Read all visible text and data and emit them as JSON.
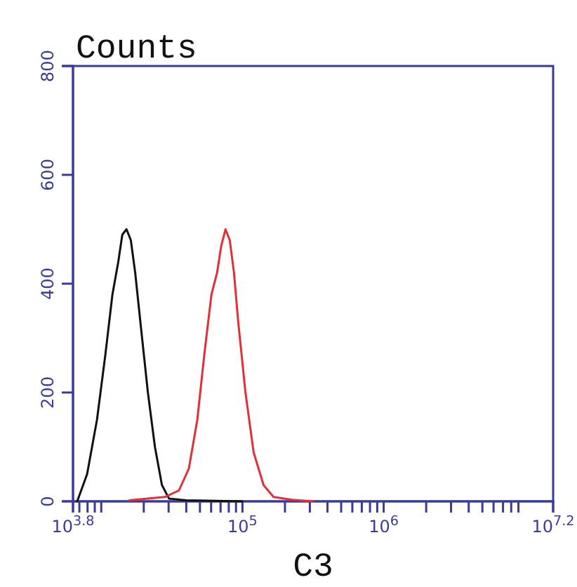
{
  "chart_data": {
    "type": "line",
    "title": "Counts",
    "xlabel": "C3",
    "log": "x",
    "xlim": [
      6310,
      15848932
    ],
    "xticks": [
      {
        "value": 6310,
        "label": "10$^{3.8}$"
      },
      {
        "value": 7000,
        "label": null
      },
      {
        "value": 8000,
        "label": null
      },
      {
        "value": 9000,
        "label": null
      },
      {
        "value": 10000,
        "label": null
      },
      {
        "value": 20000,
        "label": null
      },
      {
        "value": 30000,
        "label": null
      },
      {
        "value": 40000,
        "label": null
      },
      {
        "value": 50000,
        "label": null
      },
      {
        "value": 60000,
        "label": null
      },
      {
        "value": 70000,
        "label": null
      },
      {
        "value": 80000,
        "label": null
      },
      {
        "value": 90000,
        "label": null
      },
      {
        "value": 100000,
        "label": "10$^{5}$"
      },
      {
        "value": 200000,
        "label": null
      },
      {
        "value": 300000,
        "label": null
      },
      {
        "value": 400000,
        "label": null
      },
      {
        "value": 500000,
        "label": null
      },
      {
        "value": 600000,
        "label": null
      },
      {
        "value": 700000,
        "label": null
      },
      {
        "value": 800000,
        "label": null
      },
      {
        "value": 900000,
        "label": null
      },
      {
        "value": 1000000,
        "label": "10$^{6}$"
      },
      {
        "value": 2000000,
        "label": null
      },
      {
        "value": 3000000,
        "label": null
      },
      {
        "value": 4000000,
        "label": null
      },
      {
        "value": 5000000,
        "label": null
      },
      {
        "value": 6000000,
        "label": null
      },
      {
        "value": 7000000,
        "label": null
      },
      {
        "value": 8000000,
        "label": null
      },
      {
        "value": 9000000,
        "label": null
      },
      {
        "value": 15848932,
        "label": "10$^{7.2}$"
      }
    ],
    "ylim": [
      0,
      800
    ],
    "yticks": [
      0,
      200,
      400,
      600,
      800
    ],
    "series": [
      {
        "color": "#111111",
        "x": [
          6760,
          7940,
          9330,
          10700,
          12000,
          13200,
          14100,
          15100,
          16200,
          17400,
          19100,
          21400,
          24000,
          26900,
          30200,
          39800,
          100000
        ],
        "values": [
          0,
          50,
          150,
          270,
          380,
          440,
          490,
          500,
          480,
          420,
          320,
          200,
          100,
          30,
          5,
          2,
          0
        ]
      },
      {
        "color": "#e0303a",
        "x": [
          15800,
          28200,
          35500,
          41700,
          47900,
          53700,
          60300,
          66100,
          70800,
          75900,
          81300,
          87100,
          93300,
          105000,
          120000,
          141000,
          166000,
          224000,
          316000
        ],
        "values": [
          2,
          8,
          20,
          60,
          150,
          270,
          380,
          420,
          470,
          500,
          480,
          420,
          330,
          200,
          90,
          30,
          8,
          3,
          0
        ]
      }
    ]
  }
}
